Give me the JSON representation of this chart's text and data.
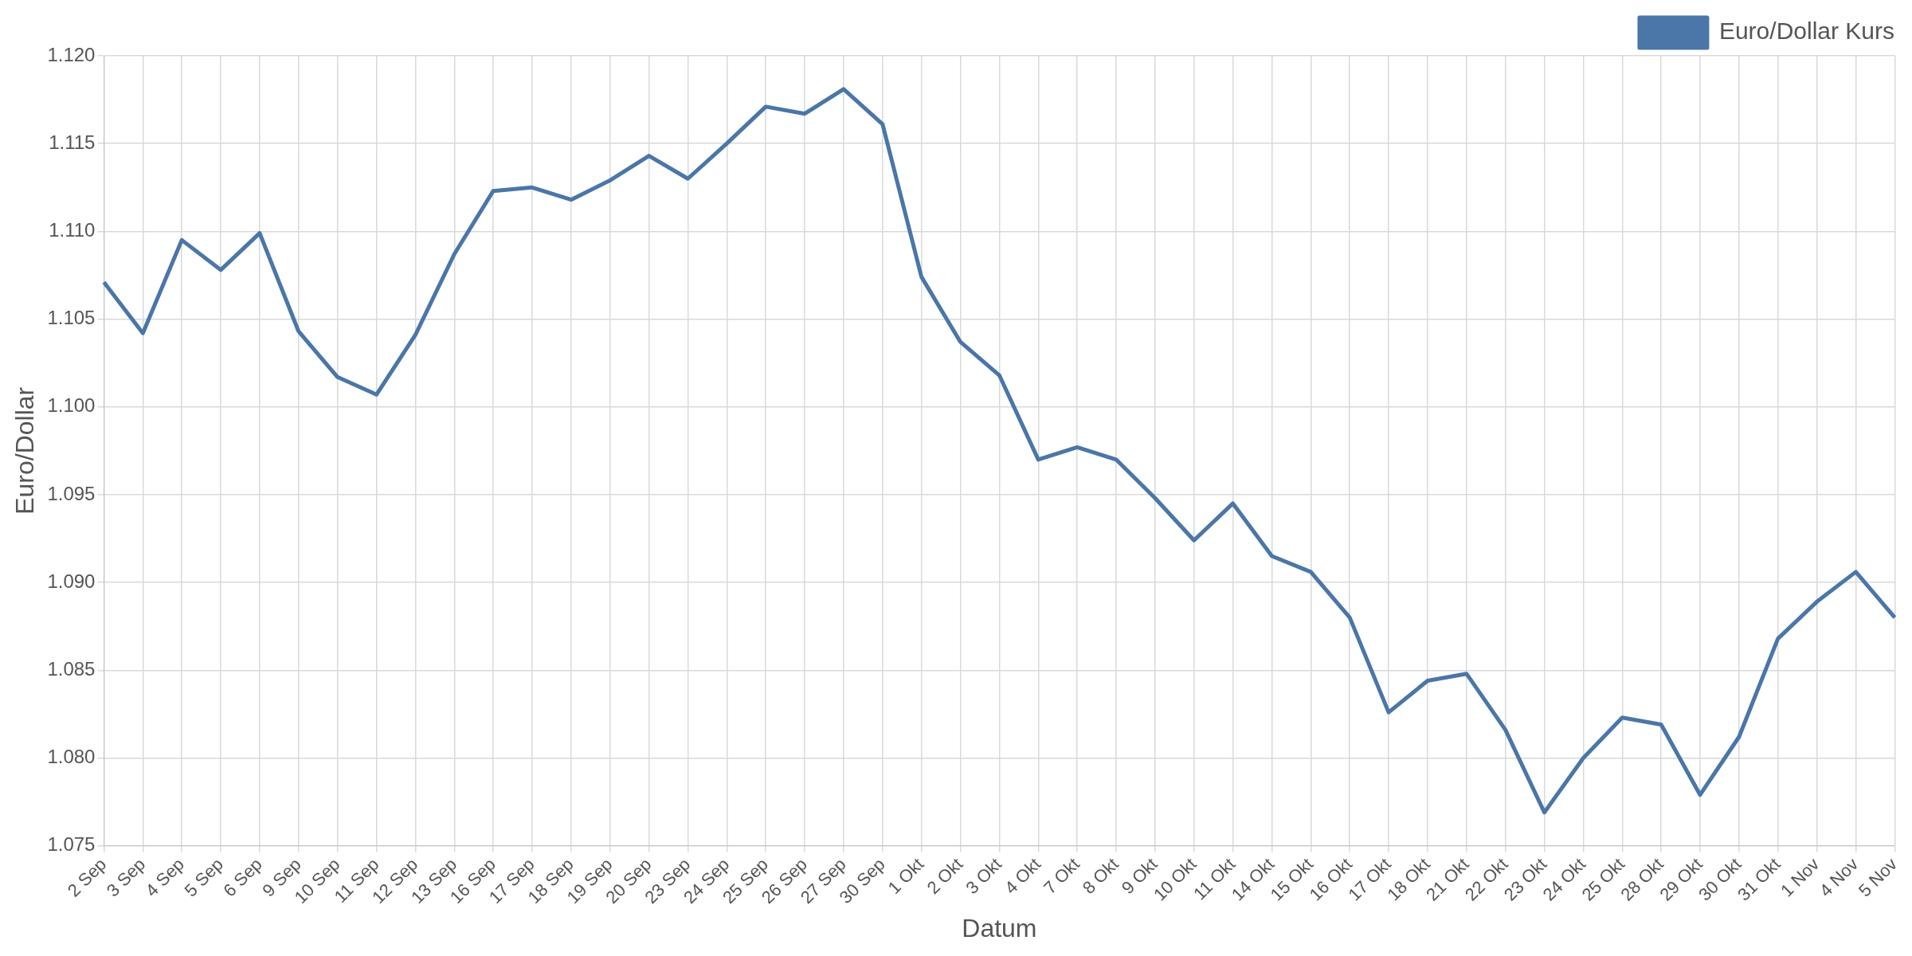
{
  "chart_data": {
    "type": "line",
    "xlabel": "Datum",
    "ylabel": "Euro/Dollar",
    "categories": [
      "2 Sep",
      "3 Sep",
      "4 Sep",
      "5 Sep",
      "6 Sep",
      "9 Sep",
      "10 Sep",
      "11 Sep",
      "12 Sep",
      "13 Sep",
      "16 Sep",
      "17 Sep",
      "18 Sep",
      "19 Sep",
      "20 Sep",
      "23 Sep",
      "24 Sep",
      "25 Sep",
      "26 Sep",
      "27 Sep",
      "30 Sep",
      "1 Okt",
      "2 Okt",
      "3 Okt",
      "4 Okt",
      "7 Okt",
      "8 Okt",
      "9 Okt",
      "10 Okt",
      "11 Okt",
      "14 Okt",
      "15 Okt",
      "16 Okt",
      "17 Okt",
      "18 Okt",
      "21 Okt",
      "22 Okt",
      "23 Okt",
      "24 Okt",
      "25 Okt",
      "28 Okt",
      "29 Okt",
      "30 Okt",
      "31 Okt",
      "1 Nov",
      "4 Nov",
      "5 Nov"
    ],
    "series": [
      {
        "name": "Euro/Dollar Kurs",
        "color": "#4a76a8",
        "values": [
          1.1071,
          1.1042,
          1.1095,
          1.1078,
          1.1099,
          1.1043,
          1.1017,
          1.1007,
          1.1041,
          1.1087,
          1.1123,
          1.1125,
          1.1118,
          1.1129,
          1.1143,
          1.113,
          1.115,
          1.1171,
          1.1167,
          1.1181,
          1.1161,
          1.1074,
          1.1037,
          1.1018,
          1.097,
          1.0977,
          1.097,
          1.0948,
          1.0924,
          1.0945,
          1.0915,
          1.0906,
          1.088,
          1.0826,
          1.0844,
          1.0848,
          1.0816,
          1.0769,
          1.08,
          1.0823,
          1.0819,
          1.0779,
          1.0812,
          1.0868,
          1.0889,
          1.0906,
          1.088
        ]
      }
    ],
    "ylim": [
      1.075,
      1.12
    ],
    "yticks": [
      {
        "value": 1.075,
        "label": "1.075"
      },
      {
        "value": 1.08,
        "label": "1.080"
      },
      {
        "value": 1.085,
        "label": "1.085"
      },
      {
        "value": 1.09,
        "label": "1.090"
      },
      {
        "value": 1.095,
        "label": "1.095"
      },
      {
        "value": 1.1,
        "label": "1.100"
      },
      {
        "value": 1.105,
        "label": "1.105"
      },
      {
        "value": 1.11,
        "label": "1.110"
      },
      {
        "value": 1.115,
        "label": "1.115"
      },
      {
        "value": 1.12,
        "label": "1.120"
      }
    ],
    "grid": true,
    "legend": "top right",
    "marker": "none",
    "line_style": "solid"
  }
}
